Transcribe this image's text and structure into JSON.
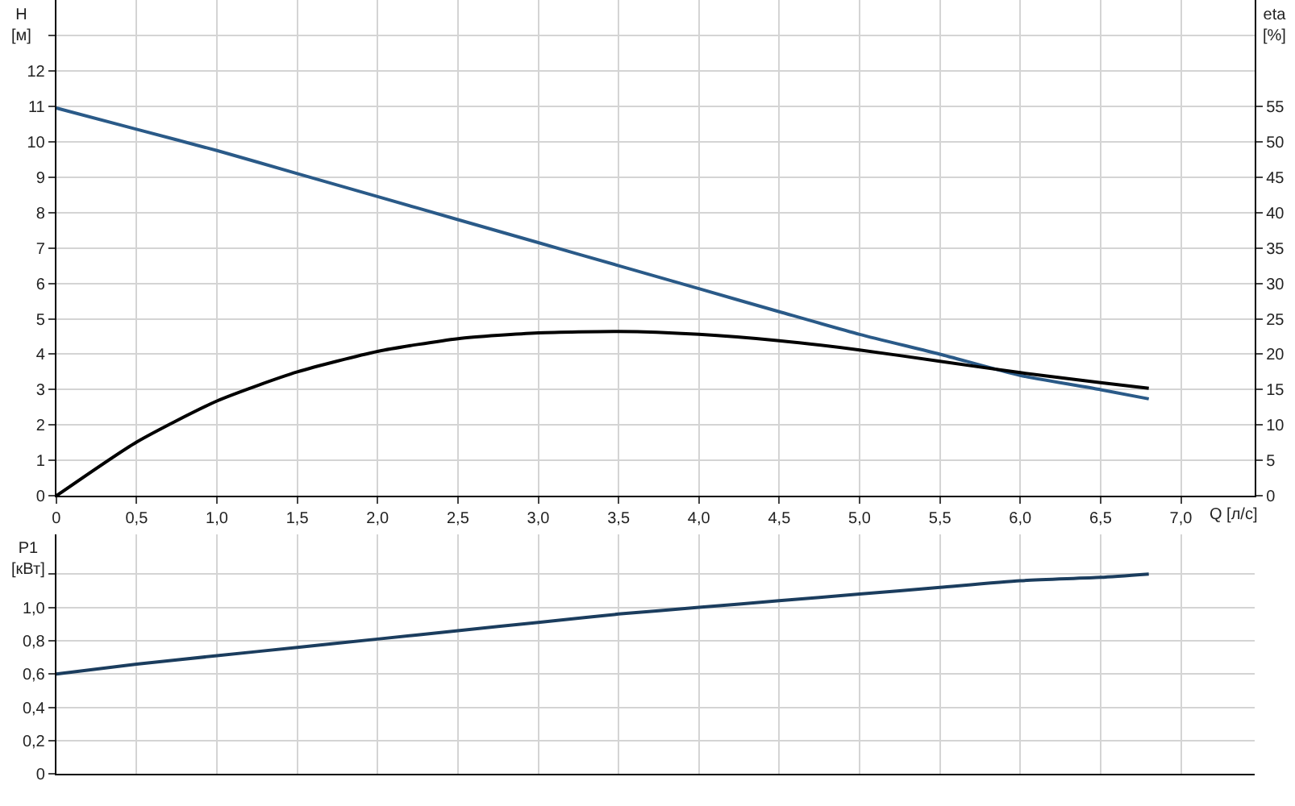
{
  "chart_data": [
    {
      "type": "line",
      "xlabel": "Q [л/с]",
      "ylabel": "H\n[м]",
      "y2label": "eta\n[%]",
      "xlim": [
        0,
        7.46
      ],
      "xticks": [
        0,
        {
          "value": 0.5,
          "label": "0,5"
        },
        {
          "value": 1,
          "label": "1,0"
        },
        {
          "value": 1.5,
          "label": "1,5"
        },
        {
          "value": 2,
          "label": "2,0"
        },
        {
          "value": 2.5,
          "label": "2,5"
        },
        {
          "value": 3,
          "label": "3,0"
        },
        {
          "value": 3.5,
          "label": "3,5"
        },
        {
          "value": 4,
          "label": "4,0"
        },
        {
          "value": 4.5,
          "label": "4,5"
        },
        {
          "value": 5,
          "label": "5,0"
        },
        {
          "value": 5.5,
          "label": "5,5"
        },
        {
          "value": 6,
          "label": "6,0"
        },
        {
          "value": 6.5,
          "label": "6,5"
        },
        {
          "value": 7,
          "label": "7,0"
        }
      ],
      "ylim": [
        0,
        14
      ],
      "yticks": [
        0,
        1,
        2,
        3,
        4,
        5,
        6,
        7,
        8,
        9,
        10,
        11,
        12,
        {
          "value": 13,
          "label": null
        }
      ],
      "y2lim": [
        0,
        70
      ],
      "y2ticks": [
        0,
        5,
        10,
        15,
        20,
        25,
        30,
        35,
        40,
        45,
        50,
        55
      ],
      "grid": true,
      "x": [
        0,
        0.5,
        1,
        1.5,
        2,
        2.5,
        3,
        3.5,
        4,
        4.5,
        5,
        5.5,
        6,
        6.5,
        6.8
      ],
      "series": [
        {
          "color": "#2a5a88",
          "values": [
            10.95,
            10.35,
            9.75,
            9.1,
            8.45,
            7.8,
            7.15,
            6.5,
            5.85,
            5.2,
            4.56,
            4.0,
            3.4,
            3.0,
            2.74
          ]
        },
        {
          "color": "#000000",
          "axis": "y2",
          "values": [
            0,
            7.6,
            13.4,
            17.5,
            20.4,
            22.2,
            23.0,
            23.2,
            22.8,
            21.9,
            20.6,
            19.0,
            17.4,
            16.0,
            15.2
          ]
        }
      ]
    },
    {
      "type": "line",
      "ylabel": "P1\n[кВт]",
      "tick_labels": "y",
      "xlim": [
        0,
        7.46
      ],
      "xticks": [
        {
          "value": 0,
          "label": null
        },
        {
          "value": 0.5,
          "label": null
        },
        {
          "value": 1,
          "label": null
        },
        {
          "value": 1.5,
          "label": null
        },
        {
          "value": 2,
          "label": null
        },
        {
          "value": 2.5,
          "label": null
        },
        {
          "value": 3,
          "label": null
        },
        {
          "value": 3.5,
          "label": null
        },
        {
          "value": 4,
          "label": null
        },
        {
          "value": 4.5,
          "label": null
        },
        {
          "value": 5,
          "label": null
        },
        {
          "value": 5.5,
          "label": null
        },
        {
          "value": 6,
          "label": null
        },
        {
          "value": 6.5,
          "label": null
        },
        {
          "value": 7,
          "label": null
        }
      ],
      "ylim": [
        0,
        1.44
      ],
      "yticks": [
        0,
        {
          "value": 0.2,
          "label": "0,2"
        },
        {
          "value": 0.4,
          "label": "0,4"
        },
        {
          "value": 0.6,
          "label": "0,6"
        },
        {
          "value": 0.8,
          "label": "0,8"
        },
        {
          "value": 1,
          "label": "1,0"
        },
        {
          "value": 1.2,
          "label": null
        }
      ],
      "grid": true,
      "x": [
        0,
        0.5,
        1,
        1.5,
        2,
        2.5,
        3,
        3.5,
        4,
        4.5,
        5,
        5.5,
        6,
        6.5,
        6.8
      ],
      "series": [
        {
          "color": "#1b3d5e",
          "values": [
            0.6,
            0.66,
            0.71,
            0.76,
            0.81,
            0.86,
            0.91,
            0.96,
            1.0,
            1.04,
            1.08,
            1.12,
            1.16,
            1.18,
            1.2
          ]
        }
      ]
    }
  ]
}
